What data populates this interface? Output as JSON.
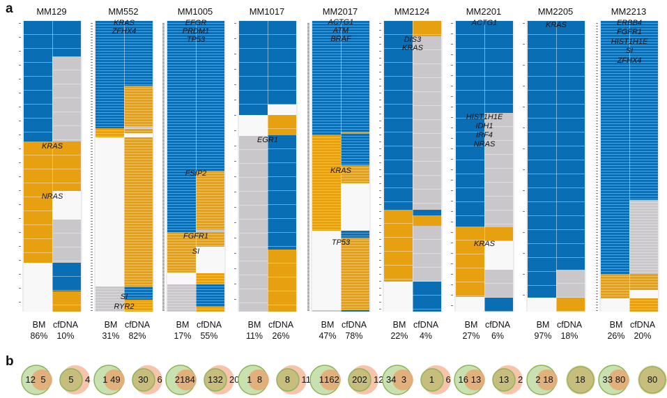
{
  "figure": {
    "panel_a_label": "a",
    "panel_b_label": "b"
  },
  "chart_data": [
    {
      "type": "heatmap",
      "panel": "a",
      "column_labels": [
        "BM",
        "cfDNA"
      ],
      "colors": {
        "blue": "#0a6eb4",
        "orange": "#e6a010",
        "grey": "#c9c7c9",
        "white": "#f9f8f9"
      },
      "samples": [
        {
          "id": "MM129",
          "bm_pct": "86%",
          "cf_pct": "10%",
          "bm_blocks": [
            [
              "blue",
              41.5
            ],
            [
              "orange",
              41.6
            ],
            [
              "white",
              16.9
            ]
          ],
          "cf_blocks": [
            [
              "blue",
              12.2
            ],
            [
              "grey",
              29.3
            ],
            [
              "orange",
              17
            ],
            [
              "white",
              9.8
            ],
            [
              "grey",
              14.9
            ],
            [
              "blue",
              9.8
            ],
            [
              "orange",
              7
            ]
          ],
          "genes": [
            "KRAS",
            "NRAS"
          ]
        },
        {
          "id": "MM552",
          "bm_pct": "31%",
          "cf_pct": "82%",
          "bm_blocks": [
            [
              "blue",
              36.9
            ],
            [
              "orange",
              3.1
            ],
            [
              "white",
              51.3
            ],
            [
              "grey",
              8.7
            ]
          ],
          "cf_blocks": [
            [
              "blue",
              22.3
            ],
            [
              "orange",
              13.9
            ],
            [
              "grey",
              1
            ],
            [
              "orange",
              1.4
            ],
            [
              "white",
              1.4
            ],
            [
              "orange",
              51.6
            ],
            [
              "blue",
              4.3
            ],
            [
              "orange",
              4.1
            ]
          ],
          "genes": [
            "KRAS",
            "ZFHX4",
            "SI",
            "RYR2"
          ]
        },
        {
          "id": "MM1005",
          "bm_pct": "17%",
          "cf_pct": "55%",
          "bm_blocks": [
            [
              "blue",
              72.7
            ],
            [
              "orange",
              13.9
            ],
            [
              "white",
              4.1
            ],
            [
              "grey",
              9.3
            ]
          ],
          "cf_blocks": [
            [
              "blue",
              51.6
            ],
            [
              "orange",
              20.4
            ],
            [
              "grey",
              0.7
            ],
            [
              "orange",
              5
            ],
            [
              "white",
              9.1
            ],
            [
              "orange",
              3.8
            ],
            [
              "blue",
              7.7
            ],
            [
              "orange",
              1.7
            ]
          ],
          "genes": [
            "EFGR",
            "PRDM1",
            "TP53",
            "FSIP2",
            "FGFR1",
            "SI"
          ]
        },
        {
          "id": "MM1017",
          "bm_pct": "11%",
          "cf_pct": "26%",
          "bm_blocks": [
            [
              "blue",
              32.4
            ],
            [
              "white",
              7.2
            ],
            [
              "grey",
              60.4
            ]
          ],
          "cf_blocks": [
            [
              "blue",
              28.8
            ],
            [
              "white",
              3.6
            ],
            [
              "orange",
              7
            ],
            [
              "blue",
              39.3
            ],
            [
              "orange",
              21.3
            ]
          ],
          "genes": [
            "EGR1"
          ]
        },
        {
          "id": "MM2017",
          "bm_pct": "47%",
          "cf_pct": "78%",
          "bm_blocks": [
            [
              "blue",
              39.3
            ],
            [
              "orange",
              32.9
            ],
            [
              "white",
              27.4
            ],
            [
              "grey",
              0.4
            ]
          ],
          "cf_blocks": [
            [
              "blue",
              38.1
            ],
            [
              "orange",
              0.7
            ],
            [
              "blue",
              10.8
            ],
            [
              "orange",
              6.2
            ],
            [
              "white",
              16.3
            ],
            [
              "blue",
              2.4
            ],
            [
              "orange",
              25
            ],
            [
              "blue",
              0.5
            ]
          ],
          "genes": [
            "ACTG1",
            "ATM",
            "BRAF",
            "KRAS",
            "TP53"
          ]
        },
        {
          "id": "MM2124",
          "bm_pct": "22%",
          "cf_pct": "4%",
          "bm_blocks": [
            [
              "blue",
              65
            ],
            [
              "orange",
              24.7
            ],
            [
              "white",
              10.3
            ]
          ],
          "cf_blocks": [
            [
              "orange",
              5.3
            ],
            [
              "grey",
              59.7
            ],
            [
              "blue",
              1.9
            ],
            [
              "orange",
              3.6
            ],
            [
              "grey",
              19.2
            ],
            [
              "blue",
              10.3
            ]
          ],
          "genes": [
            "DIS3",
            "KRAS"
          ]
        },
        {
          "id": "MM2201",
          "bm_pct": "27%",
          "cf_pct": "6%",
          "bm_blocks": [
            [
              "blue",
              70.8
            ],
            [
              "orange",
              24.2
            ],
            [
              "white",
              5
            ]
          ],
          "cf_blocks": [
            [
              "blue",
              31.7
            ],
            [
              "grey",
              39.3
            ],
            [
              "orange",
              4.8
            ],
            [
              "white",
              9.8
            ],
            [
              "grey",
              9.6
            ],
            [
              "blue",
              4.8
            ]
          ],
          "genes": [
            "ACTG1",
            "HIST1H1E",
            "IDH1",
            "IRF4",
            "NRAS",
            "KRAS"
          ]
        },
        {
          "id": "MM2205",
          "bm_pct": "97%",
          "cf_pct": "18%",
          "bm_blocks": [
            [
              "blue",
              95.2
            ],
            [
              "white",
              4.8
            ]
          ],
          "cf_blocks": [
            [
              "blue",
              85.6
            ],
            [
              "grey",
              9.6
            ],
            [
              "orange",
              4.8
            ]
          ],
          "genes": [
            "KRAS"
          ]
        },
        {
          "id": "MM2213",
          "bm_pct": "26%",
          "cf_pct": "20%",
          "bm_blocks": [
            [
              "blue",
              87
            ],
            [
              "orange",
              8.4
            ],
            [
              "white",
              4.6
            ]
          ],
          "cf_blocks": [
            [
              "blue",
              61.6
            ],
            [
              "grey",
              25.4
            ],
            [
              "orange",
              5.5
            ],
            [
              "white",
              2.9
            ],
            [
              "orange",
              4.6
            ]
          ],
          "genes": [
            "ERBB4",
            "FGFR1",
            "HIST1H1E",
            "SI",
            "ZFHX4"
          ]
        }
      ]
    },
    {
      "type": "venn",
      "panel": "b",
      "colors": {
        "bm": "#c9e0b1",
        "bm_stroke": "#8cb55a",
        "cfdna": "#f7c4ab",
        "shared": "#e4ac76",
        "shared_dark": "#c7bd7c"
      },
      "pairs": [
        {
          "sample": "MM129",
          "left": {
            "bm_only": "12",
            "shared": "5"
          },
          "right": {
            "shared": "5",
            "cf_only": "4"
          }
        },
        {
          "sample": "MM552",
          "left": {
            "bm_only": "1",
            "shared": "49"
          },
          "right": {
            "shared": "30",
            "cf_only": "6"
          }
        },
        {
          "sample": "MM1005",
          "left": {
            "bm_only": "2",
            "shared": "184"
          },
          "right": {
            "shared": "132",
            "cf_only": "20"
          }
        },
        {
          "sample": "MM1017",
          "left": {
            "bm_only": "1",
            "shared": "8"
          },
          "right": {
            "shared": "8",
            "cf_only": "11"
          }
        },
        {
          "sample": "MM2017",
          "left": {
            "bm_only": "1",
            "shared": "162"
          },
          "right": {
            "shared": "202",
            "cf_only": "12"
          }
        },
        {
          "sample": "MM2124",
          "left": {
            "bm_only": "34",
            "shared": "3"
          },
          "right": {
            "shared": "1",
            "cf_only": "6"
          }
        },
        {
          "sample": "MM2201",
          "left": {
            "bm_only": "16",
            "shared": "13"
          },
          "right": {
            "shared": "13",
            "cf_only": "2"
          }
        },
        {
          "sample": "MM2205",
          "left": {
            "bm_only": "2",
            "shared": "18"
          },
          "right": {
            "shared": "18",
            "cf_only": ""
          }
        },
        {
          "sample": "MM2213",
          "left": {
            "bm_only": "33",
            "shared": "80"
          },
          "right": {
            "shared": "80",
            "cf_only": ""
          }
        }
      ]
    }
  ]
}
